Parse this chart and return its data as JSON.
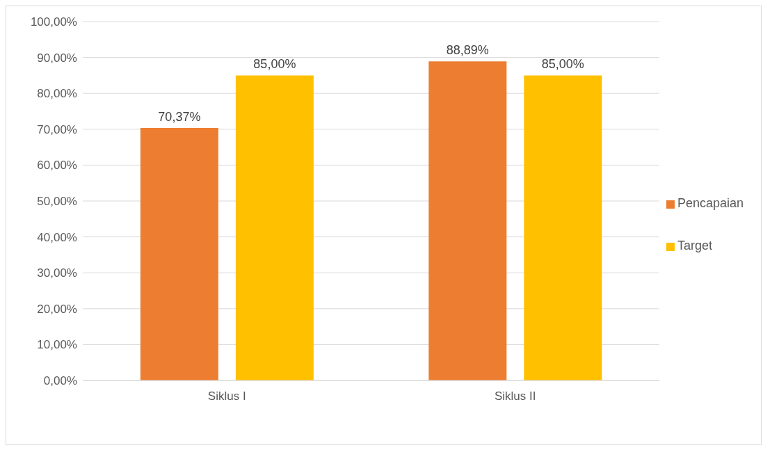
{
  "chart_data": {
    "type": "bar",
    "categories": [
      "Siklus I",
      "Siklus II"
    ],
    "series": [
      {
        "name": "Pencapaian",
        "color": "#ed7d31",
        "values": [
          70.37,
          88.89
        ],
        "value_labels": [
          "70,37%",
          "88,89%"
        ]
      },
      {
        "name": "Target",
        "color": "#ffc000",
        "values": [
          85,
          85
        ],
        "value_labels": [
          "85,00%",
          "85,00%"
        ]
      }
    ],
    "ylim": [
      0,
      100
    ],
    "yticks": [
      {
        "value": 0,
        "label": "0,00%"
      },
      {
        "value": 10,
        "label": "10,00%"
      },
      {
        "value": 20,
        "label": "20,00%"
      },
      {
        "value": 30,
        "label": "30,00%"
      },
      {
        "value": 40,
        "label": "40,00%"
      },
      {
        "value": 50,
        "label": "50,00%"
      },
      {
        "value": 60,
        "label": "60,00%"
      },
      {
        "value": 70,
        "label": "70,00%"
      },
      {
        "value": 80,
        "label": "80,00%"
      },
      {
        "value": 90,
        "label": "90,00%"
      },
      {
        "value": 100,
        "label": "100,00%"
      }
    ],
    "grid": "y",
    "legend": "right"
  }
}
